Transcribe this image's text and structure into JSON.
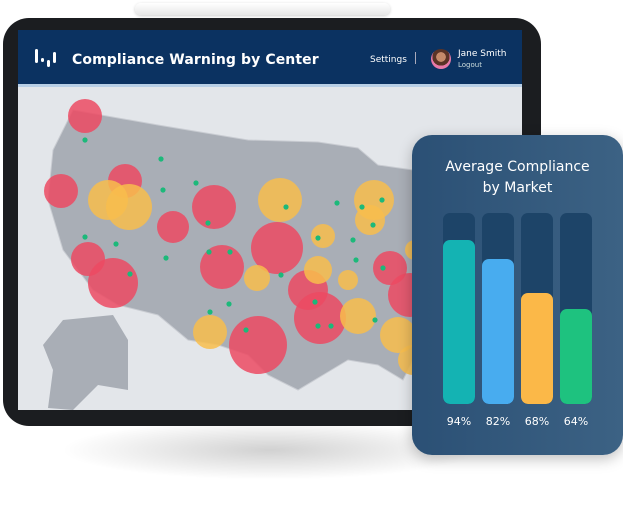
{
  "header": {
    "title": "Compliance Warning by Center",
    "settings_label": "Settings",
    "user_name": "Jane Smith",
    "logout_label": "Logout",
    "logo_icon": "bar-logo-icon",
    "color": "#0b3261"
  },
  "map": {
    "marker_colors": {
      "warning_high": "#ec4a63",
      "warning_medium": "#f8bd4c",
      "center": "#1cb97a"
    }
  },
  "chart_data": {
    "type": "bar",
    "title": "Average Compliance by Market",
    "categories": [
      "",
      "",
      "",
      ""
    ],
    "values": [
      94,
      82,
      68,
      64
    ],
    "labels": [
      "94%",
      "82%",
      "68%",
      "64%"
    ],
    "colors": [
      "#14b3b3",
      "#48acef",
      "#fbb848",
      "#1ec27f"
    ],
    "ylim": [
      0,
      100
    ]
  }
}
